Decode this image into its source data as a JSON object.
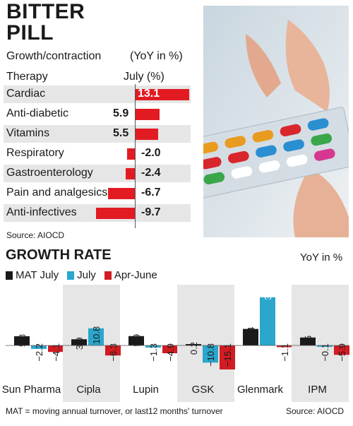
{
  "title_line1": "BITTER",
  "title_line2": "PILL",
  "top": {
    "subtitle": "Growth/contraction",
    "unit": "(YoY in %)",
    "col_therapy": "Therapy",
    "col_july": "July (%)",
    "source": "Source: AIOCD"
  },
  "bottom": {
    "title": "GROWTH RATE",
    "unit": "YoY in %",
    "footnote": "MAT = moving annual turnover, or last12 months' turnover",
    "source": "Source: AIOCD"
  },
  "colors": {
    "mat": "#1a1a1a",
    "july": "#2ba6cc",
    "aprjune": "#d01c22",
    "bar_red": "#e21b23",
    "shade": "#e6e6e6"
  },
  "chart_data": [
    {
      "type": "bar",
      "orientation": "horizontal",
      "title": "BITTER PILL",
      "subtitle": "Growth/contraction",
      "unit": "YoY in %",
      "categories": [
        "Cardiac",
        "Anti-diabetic",
        "Vitamins",
        "Respiratory",
        "Gastroenterology",
        "Pain and analgesics",
        "Anti-infectives"
      ],
      "values": [
        13.1,
        5.9,
        5.5,
        -2.0,
        -2.4,
        -6.7,
        -9.7
      ],
      "value_labels": [
        "13.1",
        "5.9",
        "5.5",
        "-2.0",
        "-2.4",
        "-6.7",
        "-9.7"
      ]
    },
    {
      "type": "bar",
      "title": "GROWTH RATE",
      "unit": "YoY in %",
      "legend_position": "top-left",
      "categories": [
        "Sun Pharma",
        "Cipla",
        "Lupin",
        "GSK",
        "Glenmark",
        "IPM"
      ],
      "series": [
        {
          "name": "MAT July",
          "values": [
            5.8,
            3.9,
            5.9,
            0.2,
            10.4,
            5.0
          ]
        },
        {
          "name": "July",
          "values": [
            -2.2,
            10.8,
            -1.3,
            -10.8,
            30.3,
            -0.1
          ]
        },
        {
          "name": "Apr-June",
          "values": [
            -4.1,
            -6.3,
            -4.9,
            -15.1,
            -1.1,
            -5.9
          ]
        }
      ]
    }
  ]
}
